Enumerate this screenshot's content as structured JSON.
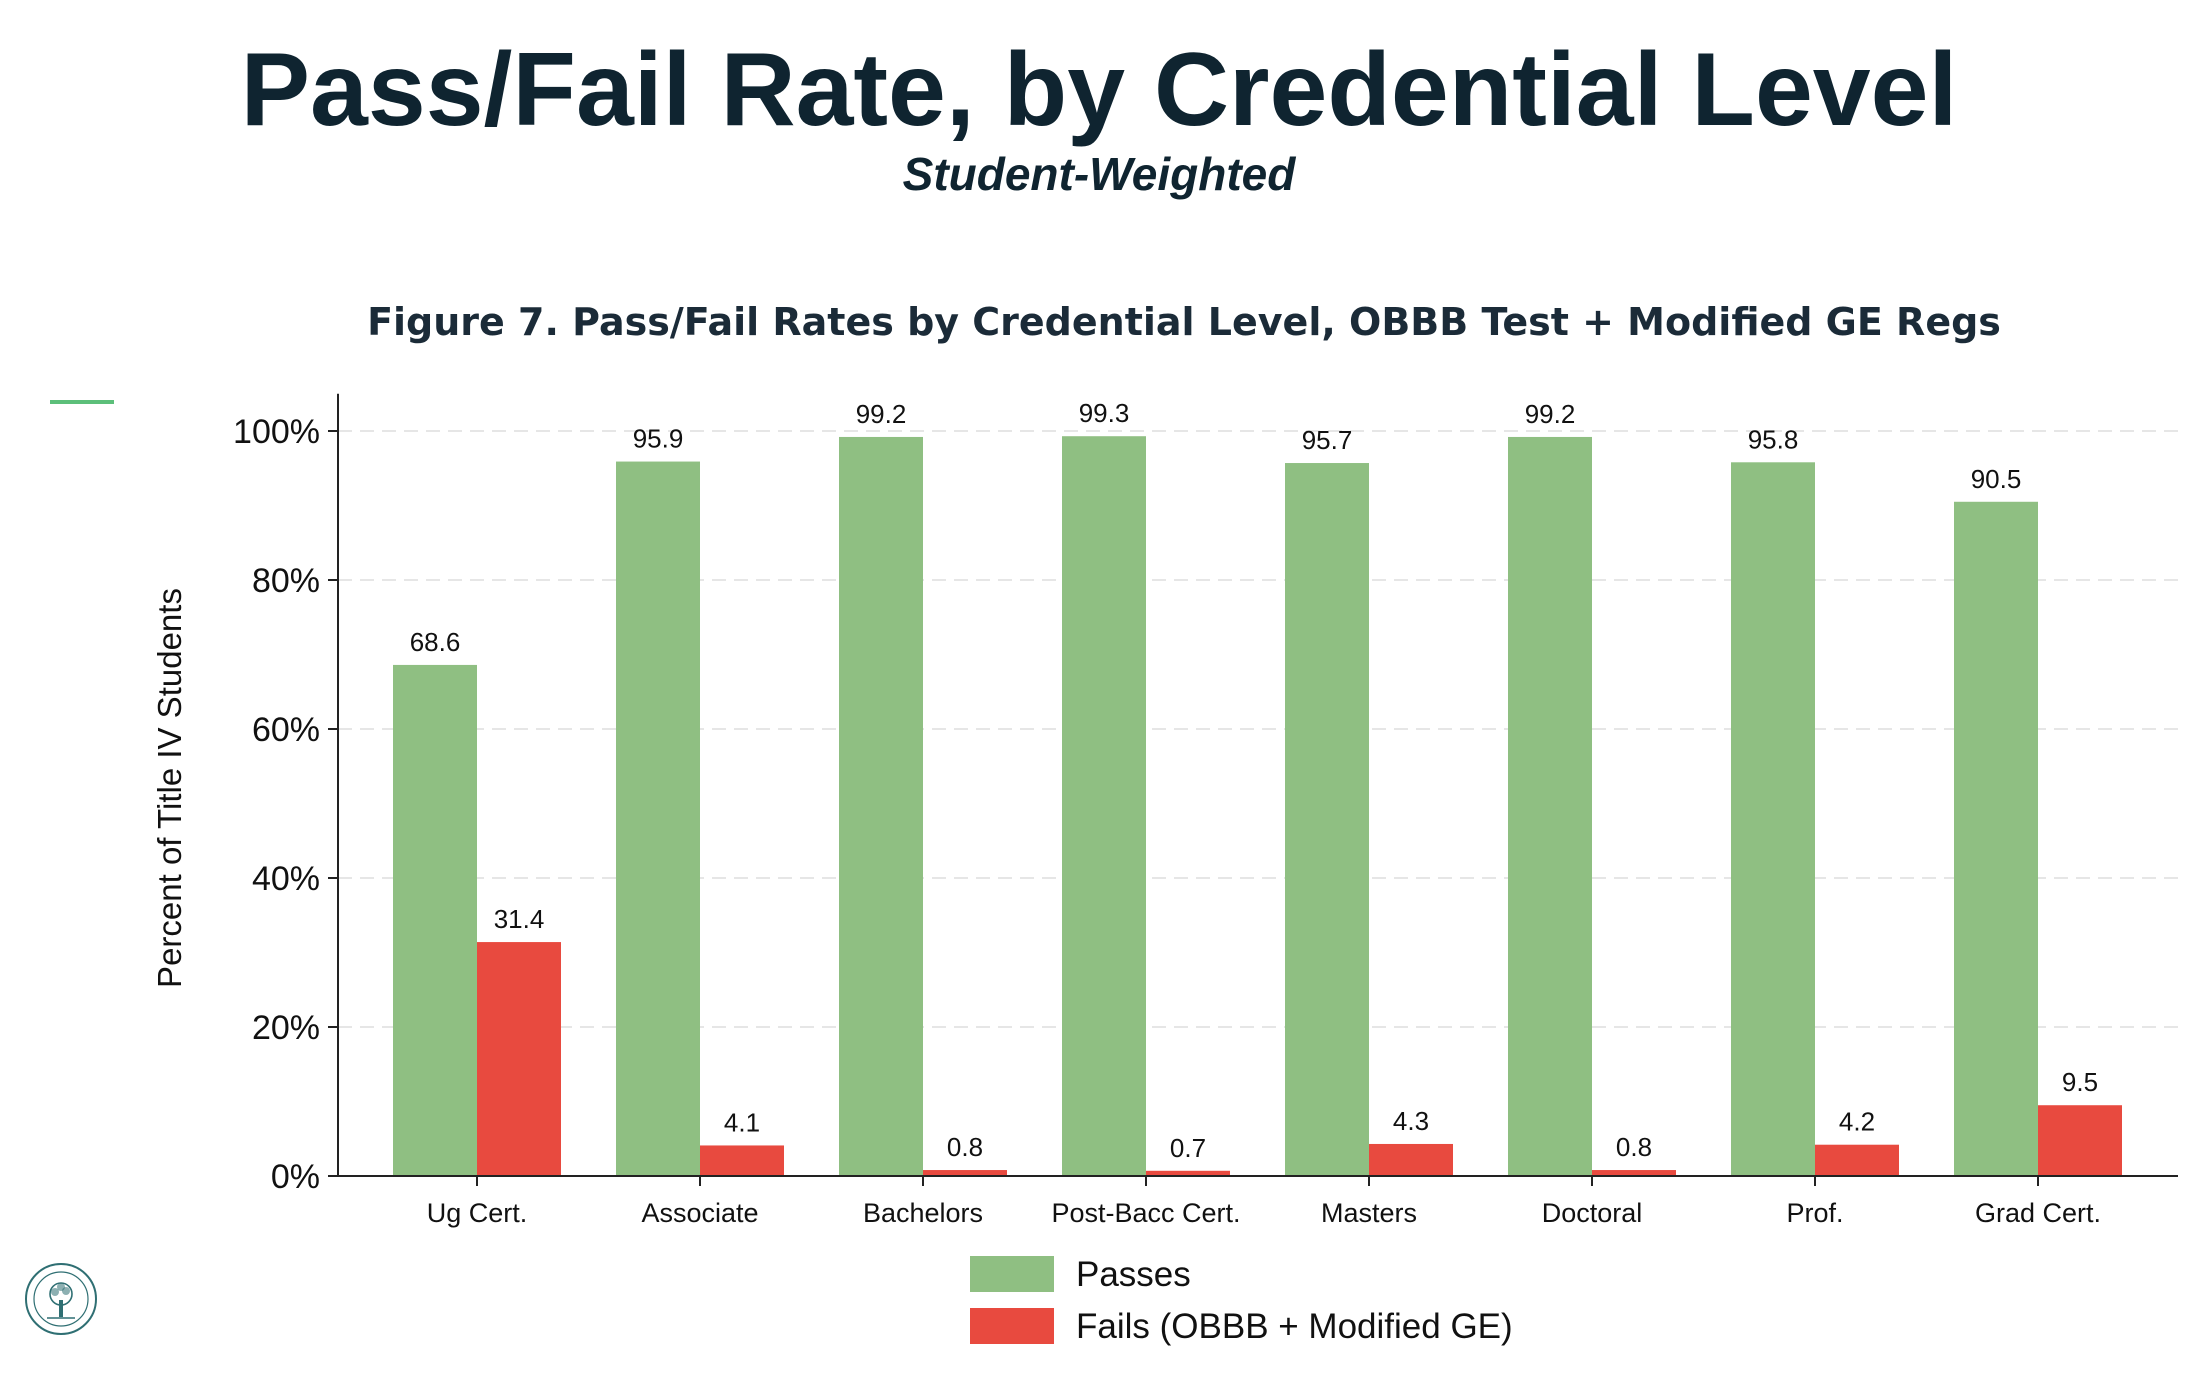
{
  "header": {
    "title": "Pass/Fail Rate, by Credential Level",
    "subtitle": "Student-Weighted"
  },
  "colors": {
    "title": "#0f2430",
    "passes": "#8fbf82",
    "fails": "#e84a3f",
    "accent_line": "#5cbf7a",
    "gridline": "#e6e6e6"
  },
  "logo": {
    "icon": "department-seal-icon"
  },
  "chart_data": {
    "type": "bar",
    "title": "Figure 7. Pass/Fail Rates by Credential Level, OBBB Test + Modified GE Regs",
    "xlabel": "",
    "ylabel": "Percent of Title IV Students",
    "ylim": [
      0,
      105
    ],
    "yticks": [
      0,
      20,
      40,
      60,
      80,
      100
    ],
    "ytick_labels": [
      "0%",
      "20%",
      "40%",
      "60%",
      "80%",
      "100%"
    ],
    "grid": true,
    "legend_position": "bottom",
    "categories": [
      "Ug Cert.",
      "Associate",
      "Bachelors",
      "Post-Bacc Cert.",
      "Masters",
      "Doctoral",
      "Prof.",
      "Grad Cert."
    ],
    "series": [
      {
        "name": "Passes",
        "color": "#8fbf82",
        "values": [
          68.6,
          95.9,
          99.2,
          99.3,
          95.7,
          99.2,
          95.8,
          90.5
        ],
        "labels": [
          "68.6",
          "95.9",
          "99.2",
          "99.3",
          "95.7",
          "99.2",
          "95.8",
          "90.5"
        ]
      },
      {
        "name": "Fails (OBBB + Modified GE)",
        "color": "#e84a3f",
        "values": [
          31.4,
          4.1,
          0.8,
          0.7,
          4.3,
          0.8,
          4.2,
          9.5
        ],
        "labels": [
          "31.4",
          "4.1",
          "0.8",
          "0.7",
          "4.3",
          "0.8",
          "4.2",
          "9.5"
        ]
      }
    ]
  }
}
